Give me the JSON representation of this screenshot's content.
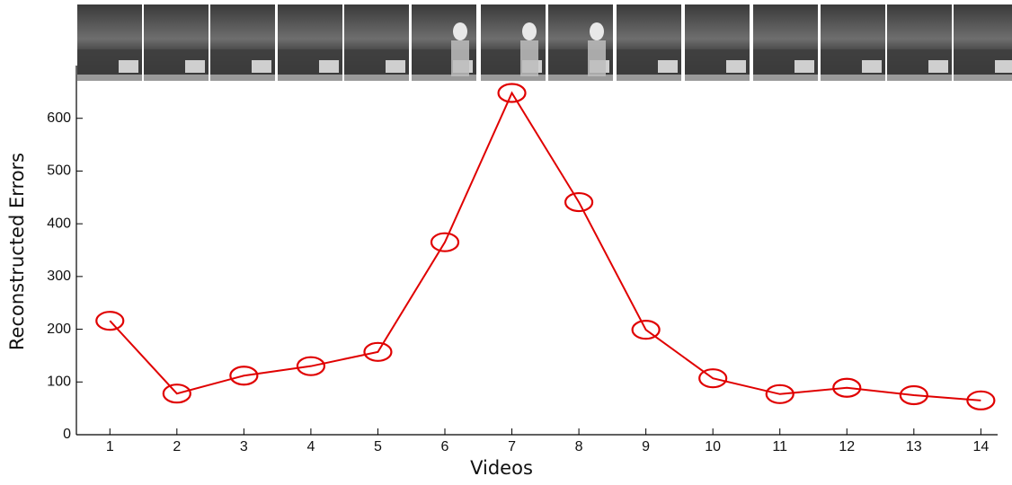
{
  "chart_data": {
    "type": "line",
    "x_label": "Videos",
    "y_label": "Reconstructed Errors",
    "x": [
      1,
      2,
      3,
      4,
      5,
      6,
      7,
      8,
      9,
      10,
      11,
      12,
      13,
      14
    ],
    "series": [
      {
        "color": "#e00000",
        "values": [
          216,
          78,
          112,
          130,
          157,
          365,
          648,
          441,
          199,
          107,
          77,
          89,
          75,
          65
        ]
      }
    ],
    "xlim": [
      0.5,
      14.25
    ],
    "ylim": [
      0,
      700
    ],
    "xticks": [
      1,
      2,
      3,
      4,
      5,
      6,
      7,
      8,
      9,
      10,
      11,
      12,
      13,
      14
    ],
    "yticks": [
      0,
      100,
      200,
      300,
      400,
      500,
      600
    ],
    "marker": "circle",
    "grid": false
  }
}
